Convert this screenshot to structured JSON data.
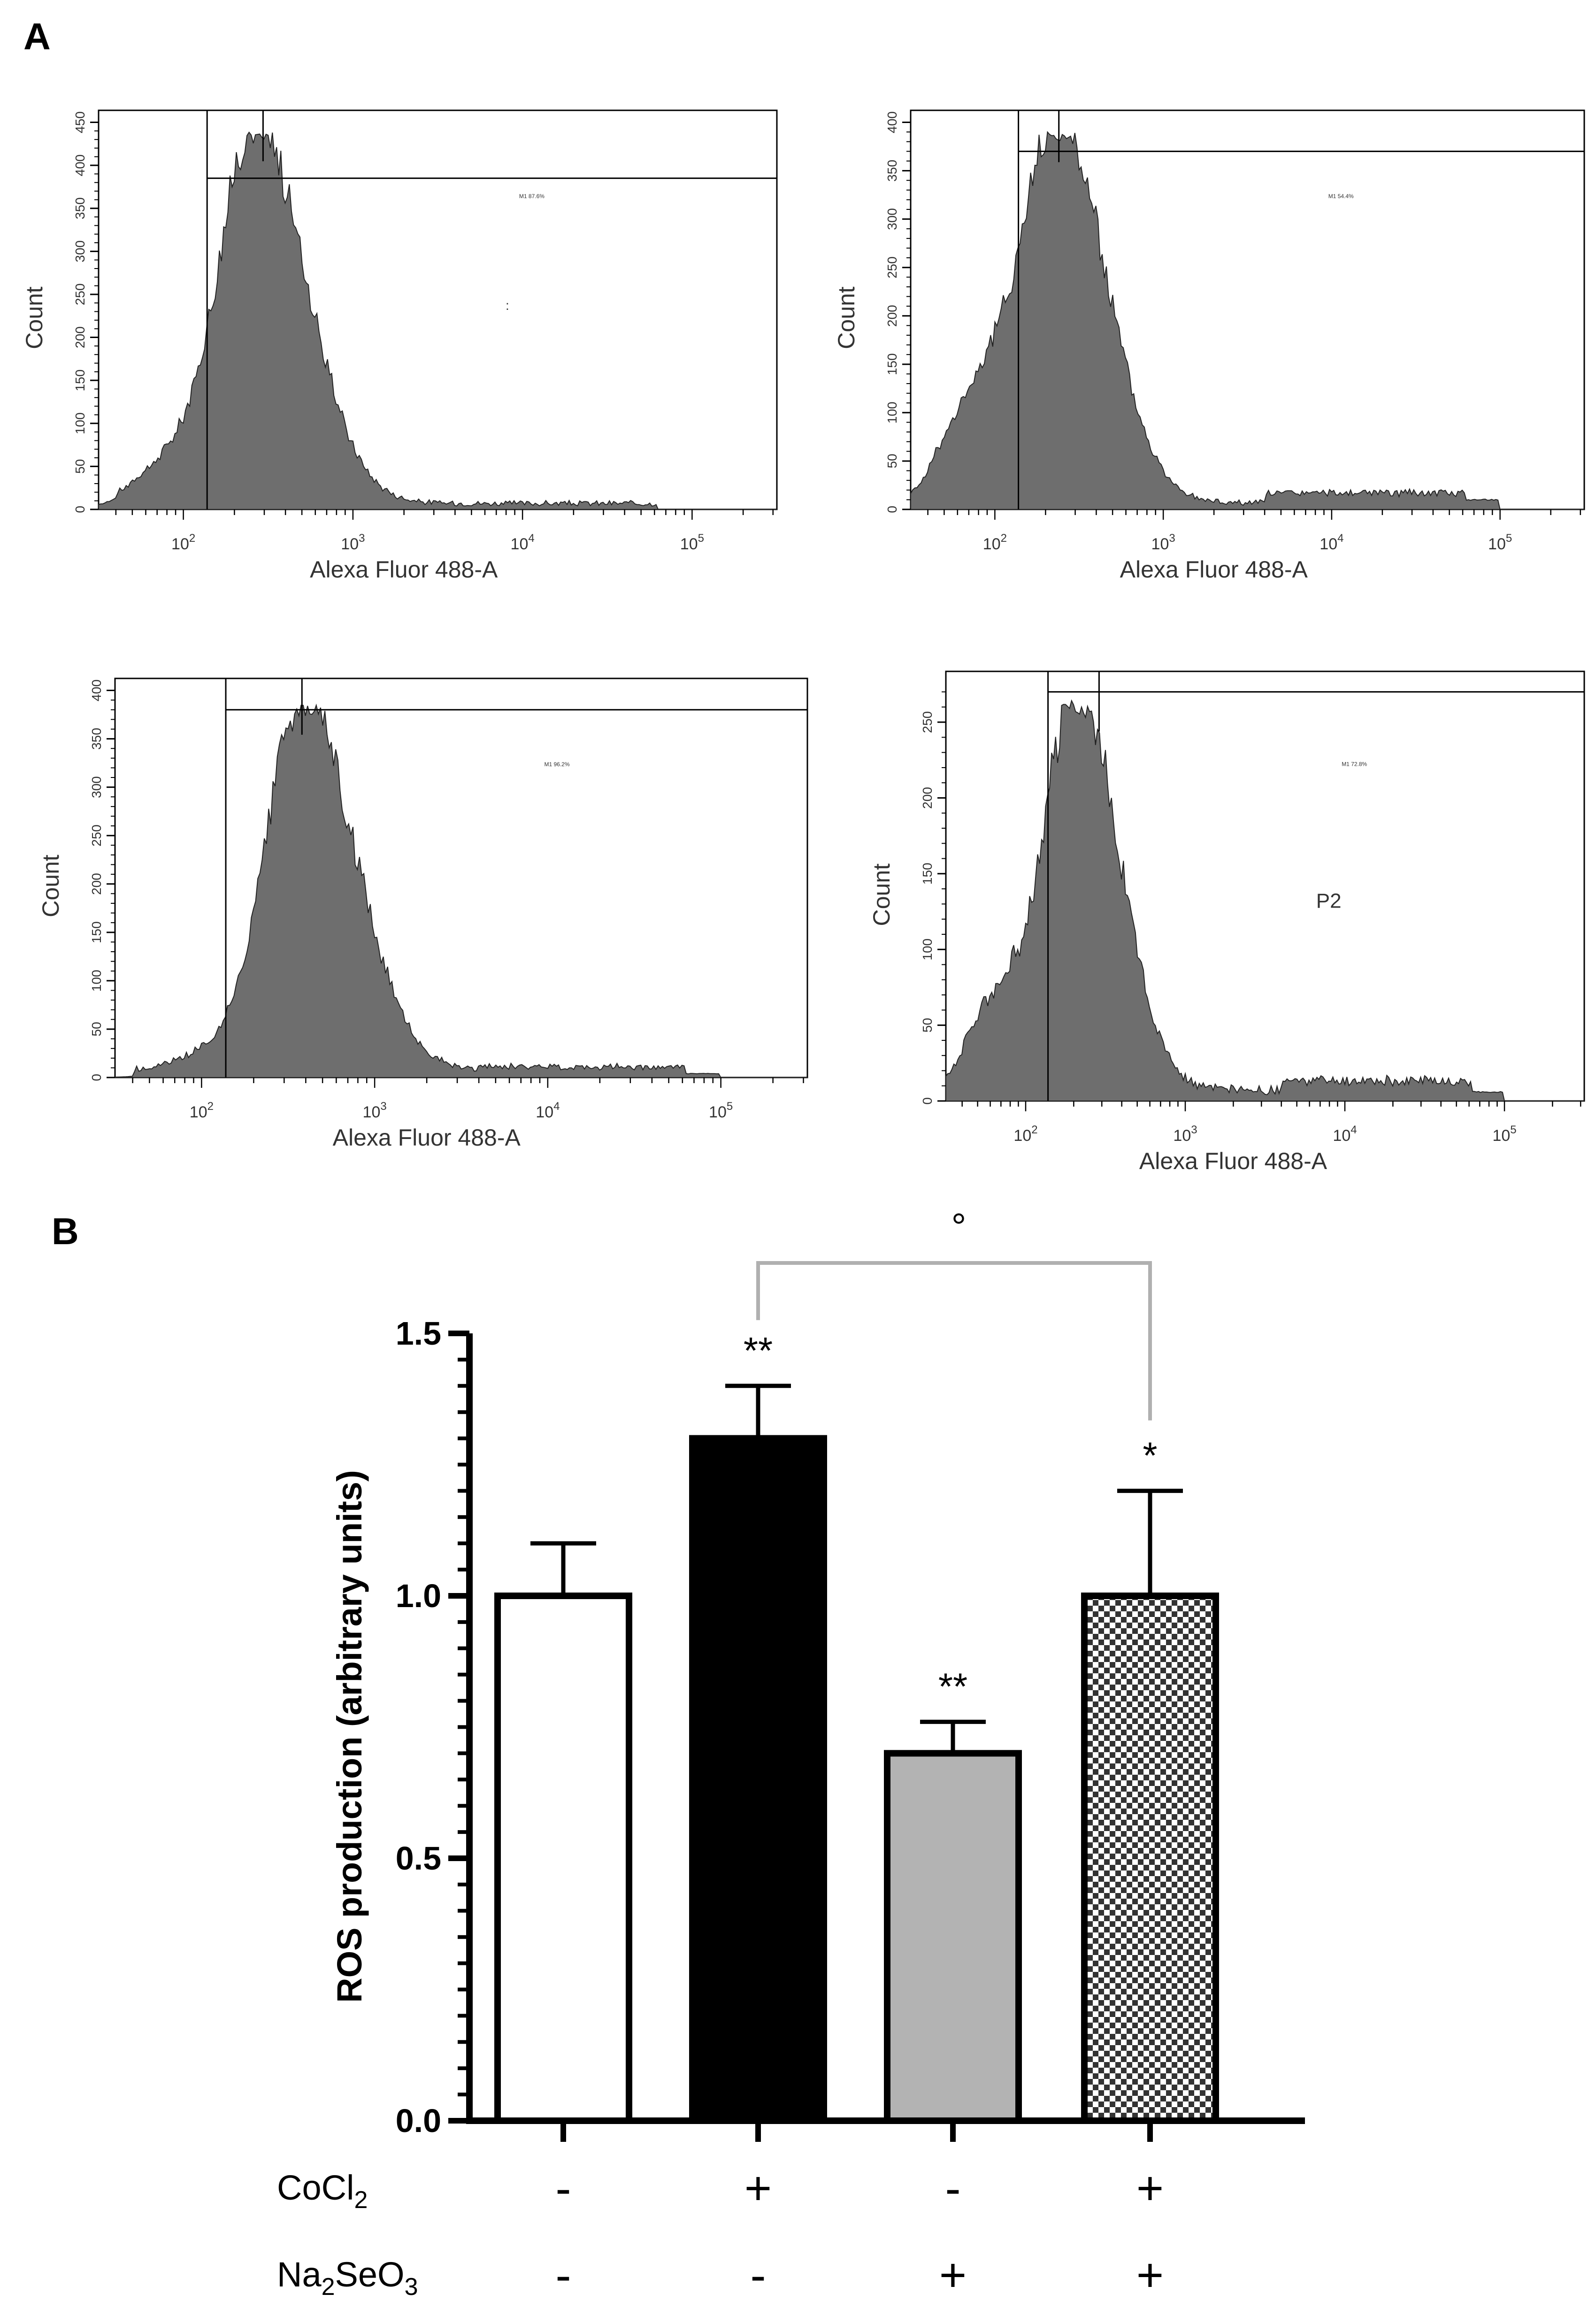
{
  "figure": {
    "panel_a_label": "A",
    "panel_b_label": "B"
  },
  "flow_histograms": [
    {
      "id": "top-left",
      "xlabel": "Alexa Fluor 488-A",
      "ylabel": "Count",
      "ymax": 450,
      "yticks": [
        0,
        50,
        100,
        150,
        200,
        250,
        300,
        350,
        400,
        450
      ],
      "xticks": [
        "2",
        "3",
        "4",
        "5"
      ],
      "tick_base": "10",
      "gate_label": "M1 87.6%",
      "extra_label": ":",
      "peak_x": 2.42,
      "peak_count": 440,
      "width_left": 0.2,
      "width_right": 0.3,
      "shoulder": 0.12,
      "tail_level": 0,
      "marker_x": 2.14,
      "marker_level": 385,
      "peak_line_x": 2.47
    },
    {
      "id": "top-right",
      "xlabel": "Alexa Fluor 488-A",
      "ylabel": "Count",
      "ymax": 400,
      "yticks": [
        0,
        50,
        100,
        150,
        200,
        250,
        300,
        350,
        400
      ],
      "xticks": [
        "2",
        "3",
        "4",
        "5"
      ],
      "tick_base": "10",
      "gate_label": "M1 54.4%",
      "extra_label": "",
      "peak_x": 2.38,
      "peak_count": 390,
      "width_left": 0.2,
      "width_right": 0.28,
      "shoulder": 0.3,
      "tail_level": 10,
      "marker_x": 2.14,
      "marker_level": 370,
      "peak_line_x": 2.38
    },
    {
      "id": "bottom-left",
      "xlabel": "Alexa Fluor 488-A",
      "ylabel": "Count",
      "ymax": 400,
      "yticks": [
        0,
        50,
        100,
        150,
        200,
        250,
        300,
        350,
        400
      ],
      "xticks": [
        "2",
        "3",
        "4",
        "5"
      ],
      "tick_base": "10",
      "gate_label": "M1 96.2%",
      "extra_label": "",
      "peak_x": 2.58,
      "peak_count": 385,
      "width_left": 0.2,
      "width_right": 0.3,
      "shoulder": 0.06,
      "tail_level": 4,
      "marker_x": 2.14,
      "marker_level": 380,
      "peak_line_x": 2.58
    },
    {
      "id": "bottom-right",
      "xlabel": "Alexa Fluor 488-A",
      "ylabel": "Count",
      "ymax": 275,
      "yticks": [
        0,
        50,
        100,
        150,
        200,
        250
      ],
      "xticks": [
        "2",
        "3",
        "4",
        "5"
      ],
      "tick_base": "10",
      "gate_label": "M1 72.8%",
      "extra_label": "P2",
      "peak_x": 2.32,
      "peak_count": 265,
      "width_left": 0.18,
      "width_right": 0.26,
      "shoulder": 0.25,
      "tail_level": 6,
      "marker_x": 2.14,
      "marker_level": 270,
      "peak_line_x": 2.46
    }
  ],
  "chart_data": [
    {
      "type": "bar",
      "title": "",
      "xlabel": "",
      "ylabel": "ROS production (arbitrary units)",
      "ylim": [
        0,
        1.5
      ],
      "yticks": [
        "0.0",
        "0.5",
        "1.0",
        "1.5"
      ],
      "categories": [
        "CoCl2 - / Na2SeO3 -",
        "CoCl2 + / Na2SeO3 -",
        "CoCl2 - / Na2SeO3 +",
        "CoCl2 + / Na2SeO3 +"
      ],
      "values": [
        1.0,
        1.3,
        0.7,
        1.0
      ],
      "errors": [
        0.1,
        0.1,
        0.06,
        0.2
      ],
      "fills": [
        "#ffffff",
        "#000000",
        "#b3b3b3",
        "checker"
      ],
      "significance": [
        "",
        "**",
        "**",
        "*"
      ],
      "bracket": {
        "from": 1,
        "to": 3,
        "label": "°",
        "color": "#b0b0b0"
      },
      "conditions": [
        {
          "label_main": "CoCl",
          "label_sub": "2",
          "label_tail": "",
          "signs": [
            "-",
            "+",
            "-",
            "+"
          ]
        },
        {
          "label_main": "Na",
          "label_sub": "2",
          "label_tail": "SeO",
          "label_sub2": "3",
          "signs": [
            "-",
            "-",
            "+",
            "+"
          ]
        }
      ]
    }
  ]
}
